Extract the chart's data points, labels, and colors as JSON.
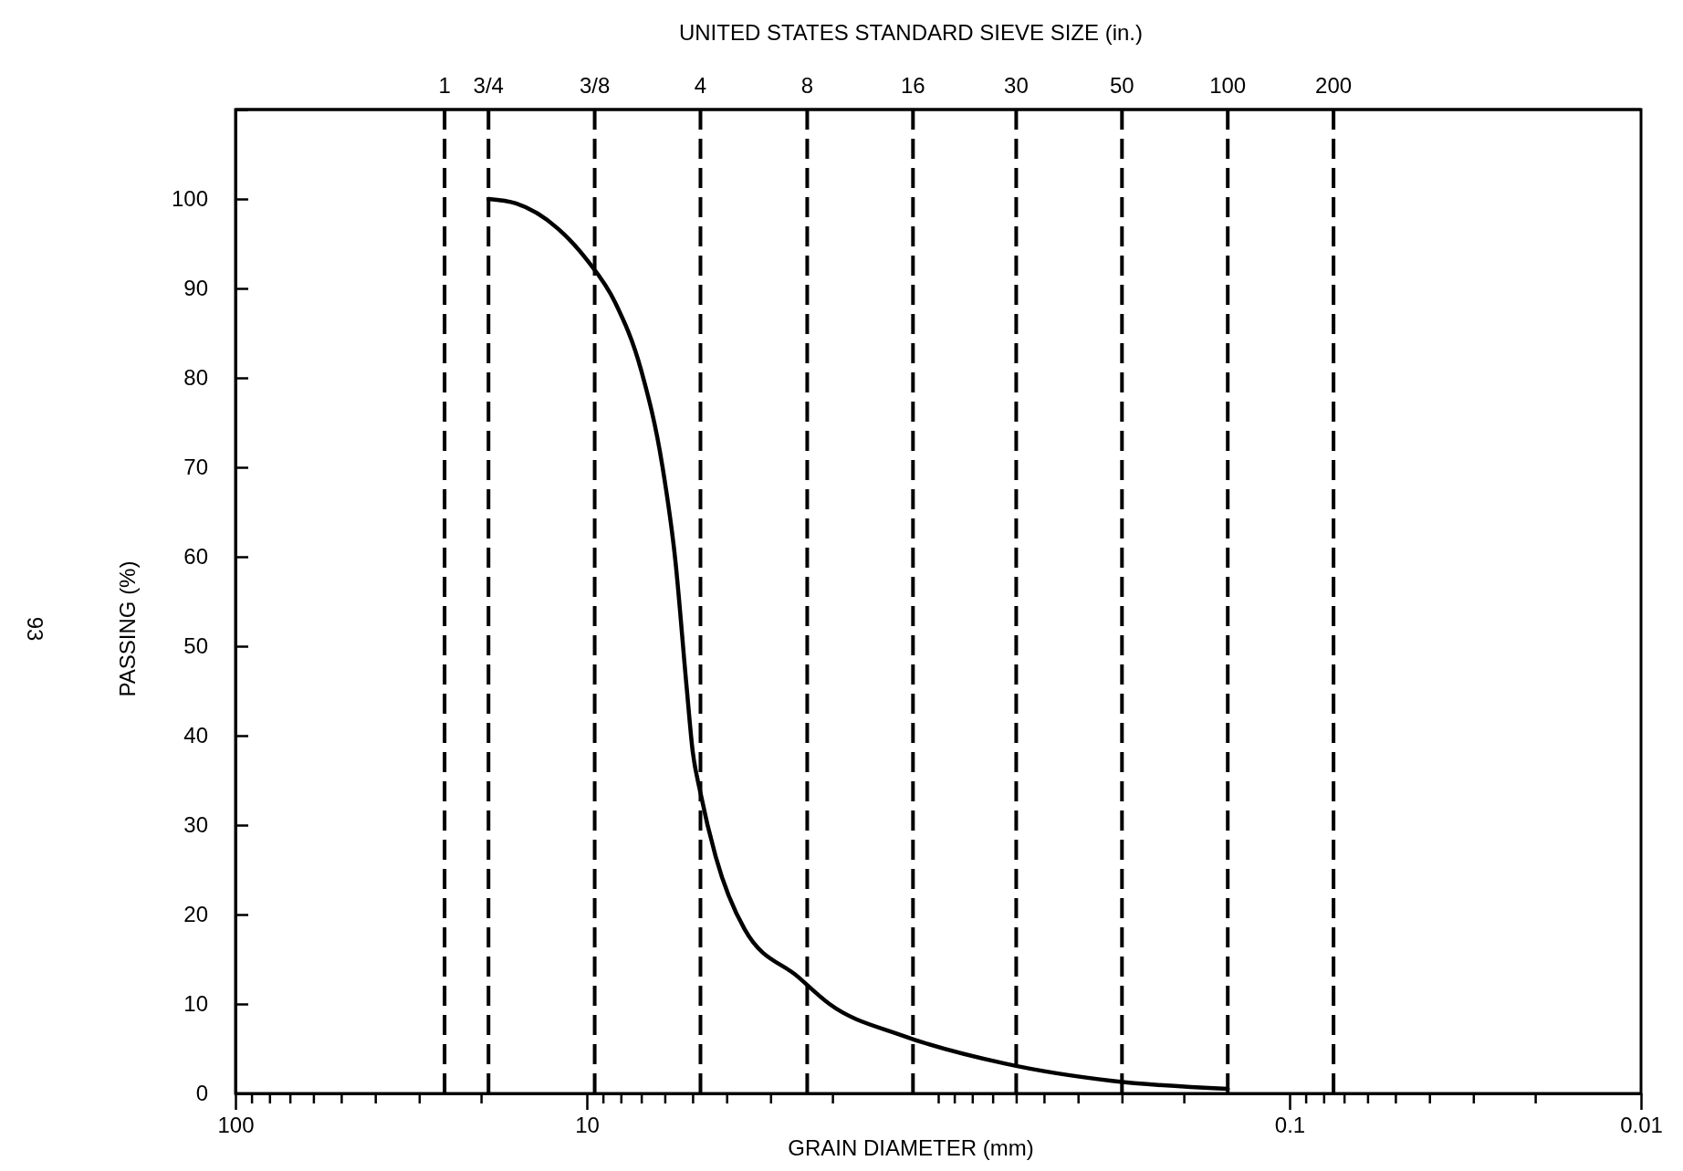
{
  "chart_data": {
    "type": "line",
    "xlabel": "GRAIN DIAMETER (mm)",
    "ylabel": "PASSING (%)",
    "x2label": "UNITED STATES STANDARD SIEVE SIZE (in.)",
    "log": "x",
    "xlim": [
      100,
      0.01
    ],
    "ylim": [
      0,
      110
    ],
    "xticks": [
      100,
      {
        "value": 90,
        "label": null
      },
      {
        "value": 80,
        "label": null
      },
      {
        "value": 70,
        "label": null
      },
      {
        "value": 60,
        "label": null
      },
      {
        "value": 50,
        "label": null
      },
      {
        "value": 40,
        "label": null
      },
      {
        "value": 30,
        "label": null
      },
      {
        "value": 20,
        "label": null
      },
      10,
      {
        "value": 9,
        "label": null
      },
      {
        "value": 8,
        "label": null
      },
      {
        "value": 7,
        "label": null
      },
      {
        "value": 6,
        "label": null
      },
      {
        "value": 5,
        "label": null
      },
      {
        "value": 4,
        "label": null
      },
      {
        "value": 3,
        "label": null
      },
      {
        "value": 2,
        "label": null
      },
      {
        "value": 1,
        "label": null
      },
      {
        "value": 0.9,
        "label": null
      },
      {
        "value": 0.8,
        "label": null
      },
      {
        "value": 0.7,
        "label": null
      },
      {
        "value": 0.6,
        "label": null
      },
      {
        "value": 0.5,
        "label": null
      },
      {
        "value": 0.4,
        "label": null
      },
      {
        "value": 0.3,
        "label": null
      },
      {
        "value": 0.2,
        "label": null
      },
      0.1,
      {
        "value": 0.09,
        "label": null
      },
      {
        "value": 0.08,
        "label": null
      },
      {
        "value": 0.07,
        "label": null
      },
      {
        "value": 0.06,
        "label": null
      },
      {
        "value": 0.05,
        "label": null
      },
      {
        "value": 0.04,
        "label": null
      },
      {
        "value": 0.03,
        "label": null
      },
      {
        "value": 0.02,
        "label": null
      },
      0.01
    ],
    "yticks": [
      0,
      10,
      20,
      30,
      40,
      50,
      60,
      70,
      80,
      90,
      100
    ],
    "grid": false,
    "marker": "none",
    "line_style": "solid",
    "series": [
      {
        "color": "#000000",
        "x": [
          19.05,
          15.9,
          12.1,
          10,
          8.3,
          7.0,
          6.1,
          5.6,
          5.2,
          5.0,
          4.75,
          4.3,
          3.55,
          2.5,
          2.04,
          1.27,
          0.64,
          0.32,
          0.15
        ],
        "values": [
          100,
          99.5,
          96.7,
          93.2,
          88.4,
          80.8,
          70.2,
          59.6,
          45.4,
          38.3,
          33.6,
          26.5,
          18.3,
          13.0,
          10.0,
          6.5,
          3.3,
          1.4,
          0.5
        ]
      }
    ],
    "ref_lines": [
      {
        "axis": "x",
        "value": 25.4,
        "line_style": "dashed",
        "color": "#000000"
      },
      {
        "axis": "x",
        "value": 19.05,
        "line_style": "dashed",
        "color": "#000000"
      },
      {
        "axis": "x",
        "value": 9.5,
        "line_style": "dashed",
        "color": "#000000"
      },
      {
        "axis": "x",
        "value": 4.75,
        "line_style": "dashed",
        "color": "#000000"
      },
      {
        "axis": "x",
        "value": 2.36,
        "line_style": "dashed",
        "color": "#000000"
      },
      {
        "axis": "x",
        "value": 1.18,
        "line_style": "dashed",
        "color": "#000000"
      },
      {
        "axis": "x",
        "value": 0.6,
        "line_style": "dashed",
        "color": "#000000"
      },
      {
        "axis": "x",
        "value": 0.3,
        "line_style": "dashed",
        "color": "#000000"
      },
      {
        "axis": "x",
        "value": 0.15,
        "line_style": "dashed",
        "color": "#000000"
      },
      {
        "axis": "x",
        "value": 0.075,
        "line_style": "dashed",
        "color": "#000000"
      }
    ],
    "annotations": [
      "93",
      "1",
      "3/4",
      "3/8",
      "4",
      "8",
      "16",
      "30",
      "50",
      "100",
      "200"
    ]
  }
}
